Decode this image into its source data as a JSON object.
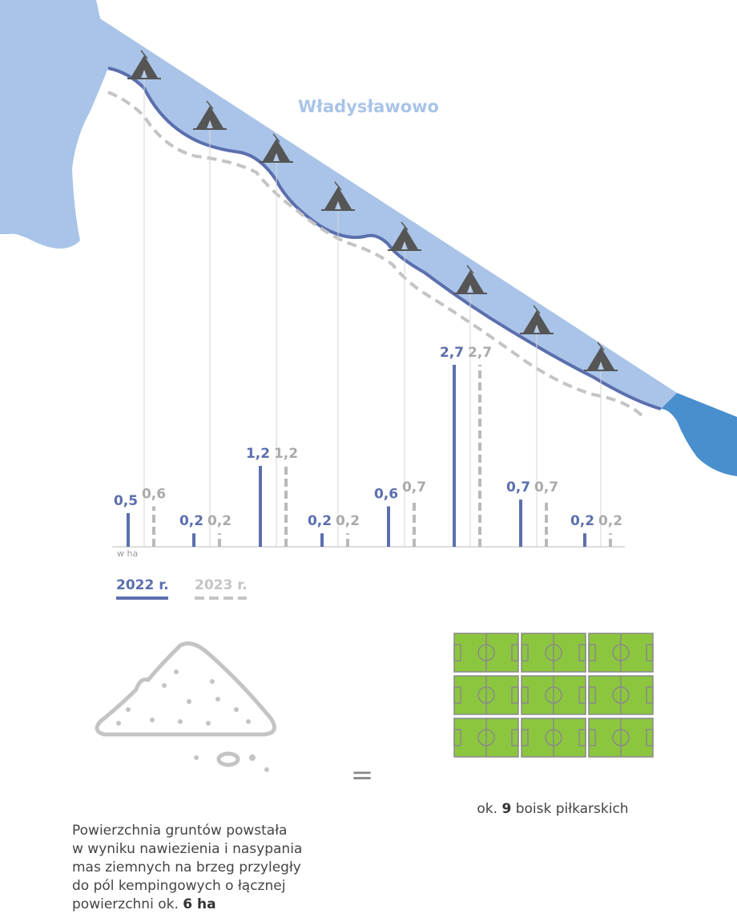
{
  "place": "Władysławowo",
  "chart_data": {
    "type": "bar",
    "unit": "w ha",
    "categories": [
      null,
      null,
      null,
      null,
      null,
      null,
      null,
      null
    ],
    "series": [
      {
        "name": "2022 r.",
        "color": "#5b6fae",
        "style": "solid",
        "values": [
          0.5,
          0.2,
          1.2,
          0.2,
          0.6,
          2.7,
          0.7,
          0.2
        ],
        "value_labels": [
          "0,5",
          "0,2",
          "1,2",
          "0,2",
          "0,6",
          "2,7",
          "0,7",
          "0,2"
        ]
      },
      {
        "name": "2023 r.",
        "color": "#b9b9b9",
        "style": "dashed",
        "values": [
          0.6,
          0.2,
          1.2,
          0.2,
          0.7,
          2.7,
          0.7,
          0.2
        ],
        "value_labels": [
          "0,6",
          "0,2",
          "1,2",
          "0,2",
          "0,7",
          "2,7",
          "0,7",
          "0,2"
        ]
      }
    ]
  },
  "equals": "=",
  "caption_left": {
    "lines": [
      "Powierzchnia gruntów powstała",
      "w wyniku nawiezienia i nasypania",
      "mas ziemnych na brzeg przyległy",
      "do pól kempingowych o łącznej",
      "powierzchni ok."
    ],
    "bold": "6 ha"
  },
  "caption_right": {
    "before": "ok.",
    "bold": "9",
    "after": "boisk piłkarskich"
  }
}
